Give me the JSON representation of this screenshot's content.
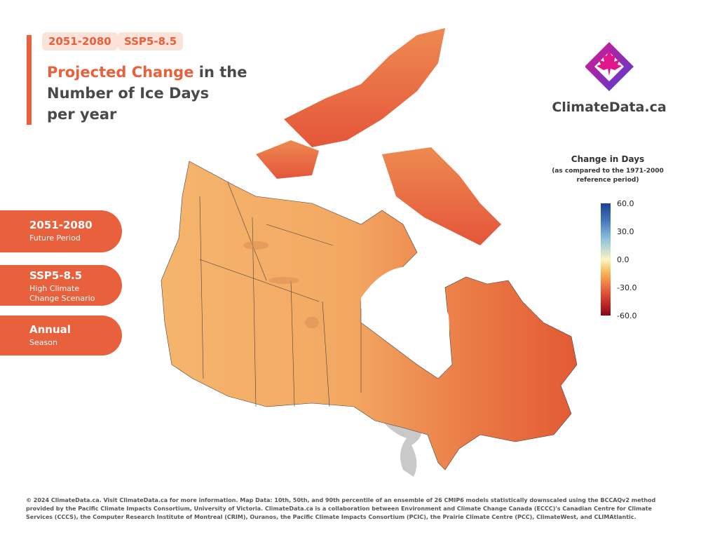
{
  "badges": {
    "period": "2051-2080",
    "scenario": "SSP5-8.5"
  },
  "title": {
    "highlight": "Projected Change",
    "rest_line1": " in the",
    "line2": "Number of Ice Days",
    "line3": "per year"
  },
  "brand": {
    "name": "ClimateData.ca",
    "logo_icon": "maple-leaf-diamond-icon"
  },
  "sidebar": {
    "period": {
      "main": "2051-2080",
      "sub": "Future Period"
    },
    "scenario": {
      "main": "SSP5-8.5",
      "sub": "High Climate Change Scenario"
    },
    "season": {
      "main": "Annual",
      "sub": "Season"
    }
  },
  "legend": {
    "title": "Change in Days",
    "subtitle": "(as compared to the 1971-2000 reference period)",
    "ticks": [
      "60.0",
      "30.0",
      "0.0",
      "-30.0",
      "-60.0"
    ],
    "range": [
      -60,
      60
    ],
    "colors": {
      "max": "#1f3f95",
      "mid": "#fcf5c4",
      "min": "#7b0a17",
      "accent": "#e8603c"
    }
  },
  "footer": "© 2024 ClimateData.ca. Visit ClimateData.ca for more information. Map Data: 10th, 50th, and 90th percentile of an ensemble of 26 CMIP6 models statistically downscaled using the BCCAQv2 method provided by the Pacific Climate Impacts Consortium, University of Victoria. ClimateData.ca is a collaboration between Environment and Climate Change Canada (ECCC)'s Canadian Centre for Climate Services (CCCS), the Computer Research Institute of Montreal (CRIM), Ouranos, the Pacific Climate Impacts Consortium (PCIC), the Prairie Climate Centre (PCC), ClimateWest, and CLIMAtlantic."
}
